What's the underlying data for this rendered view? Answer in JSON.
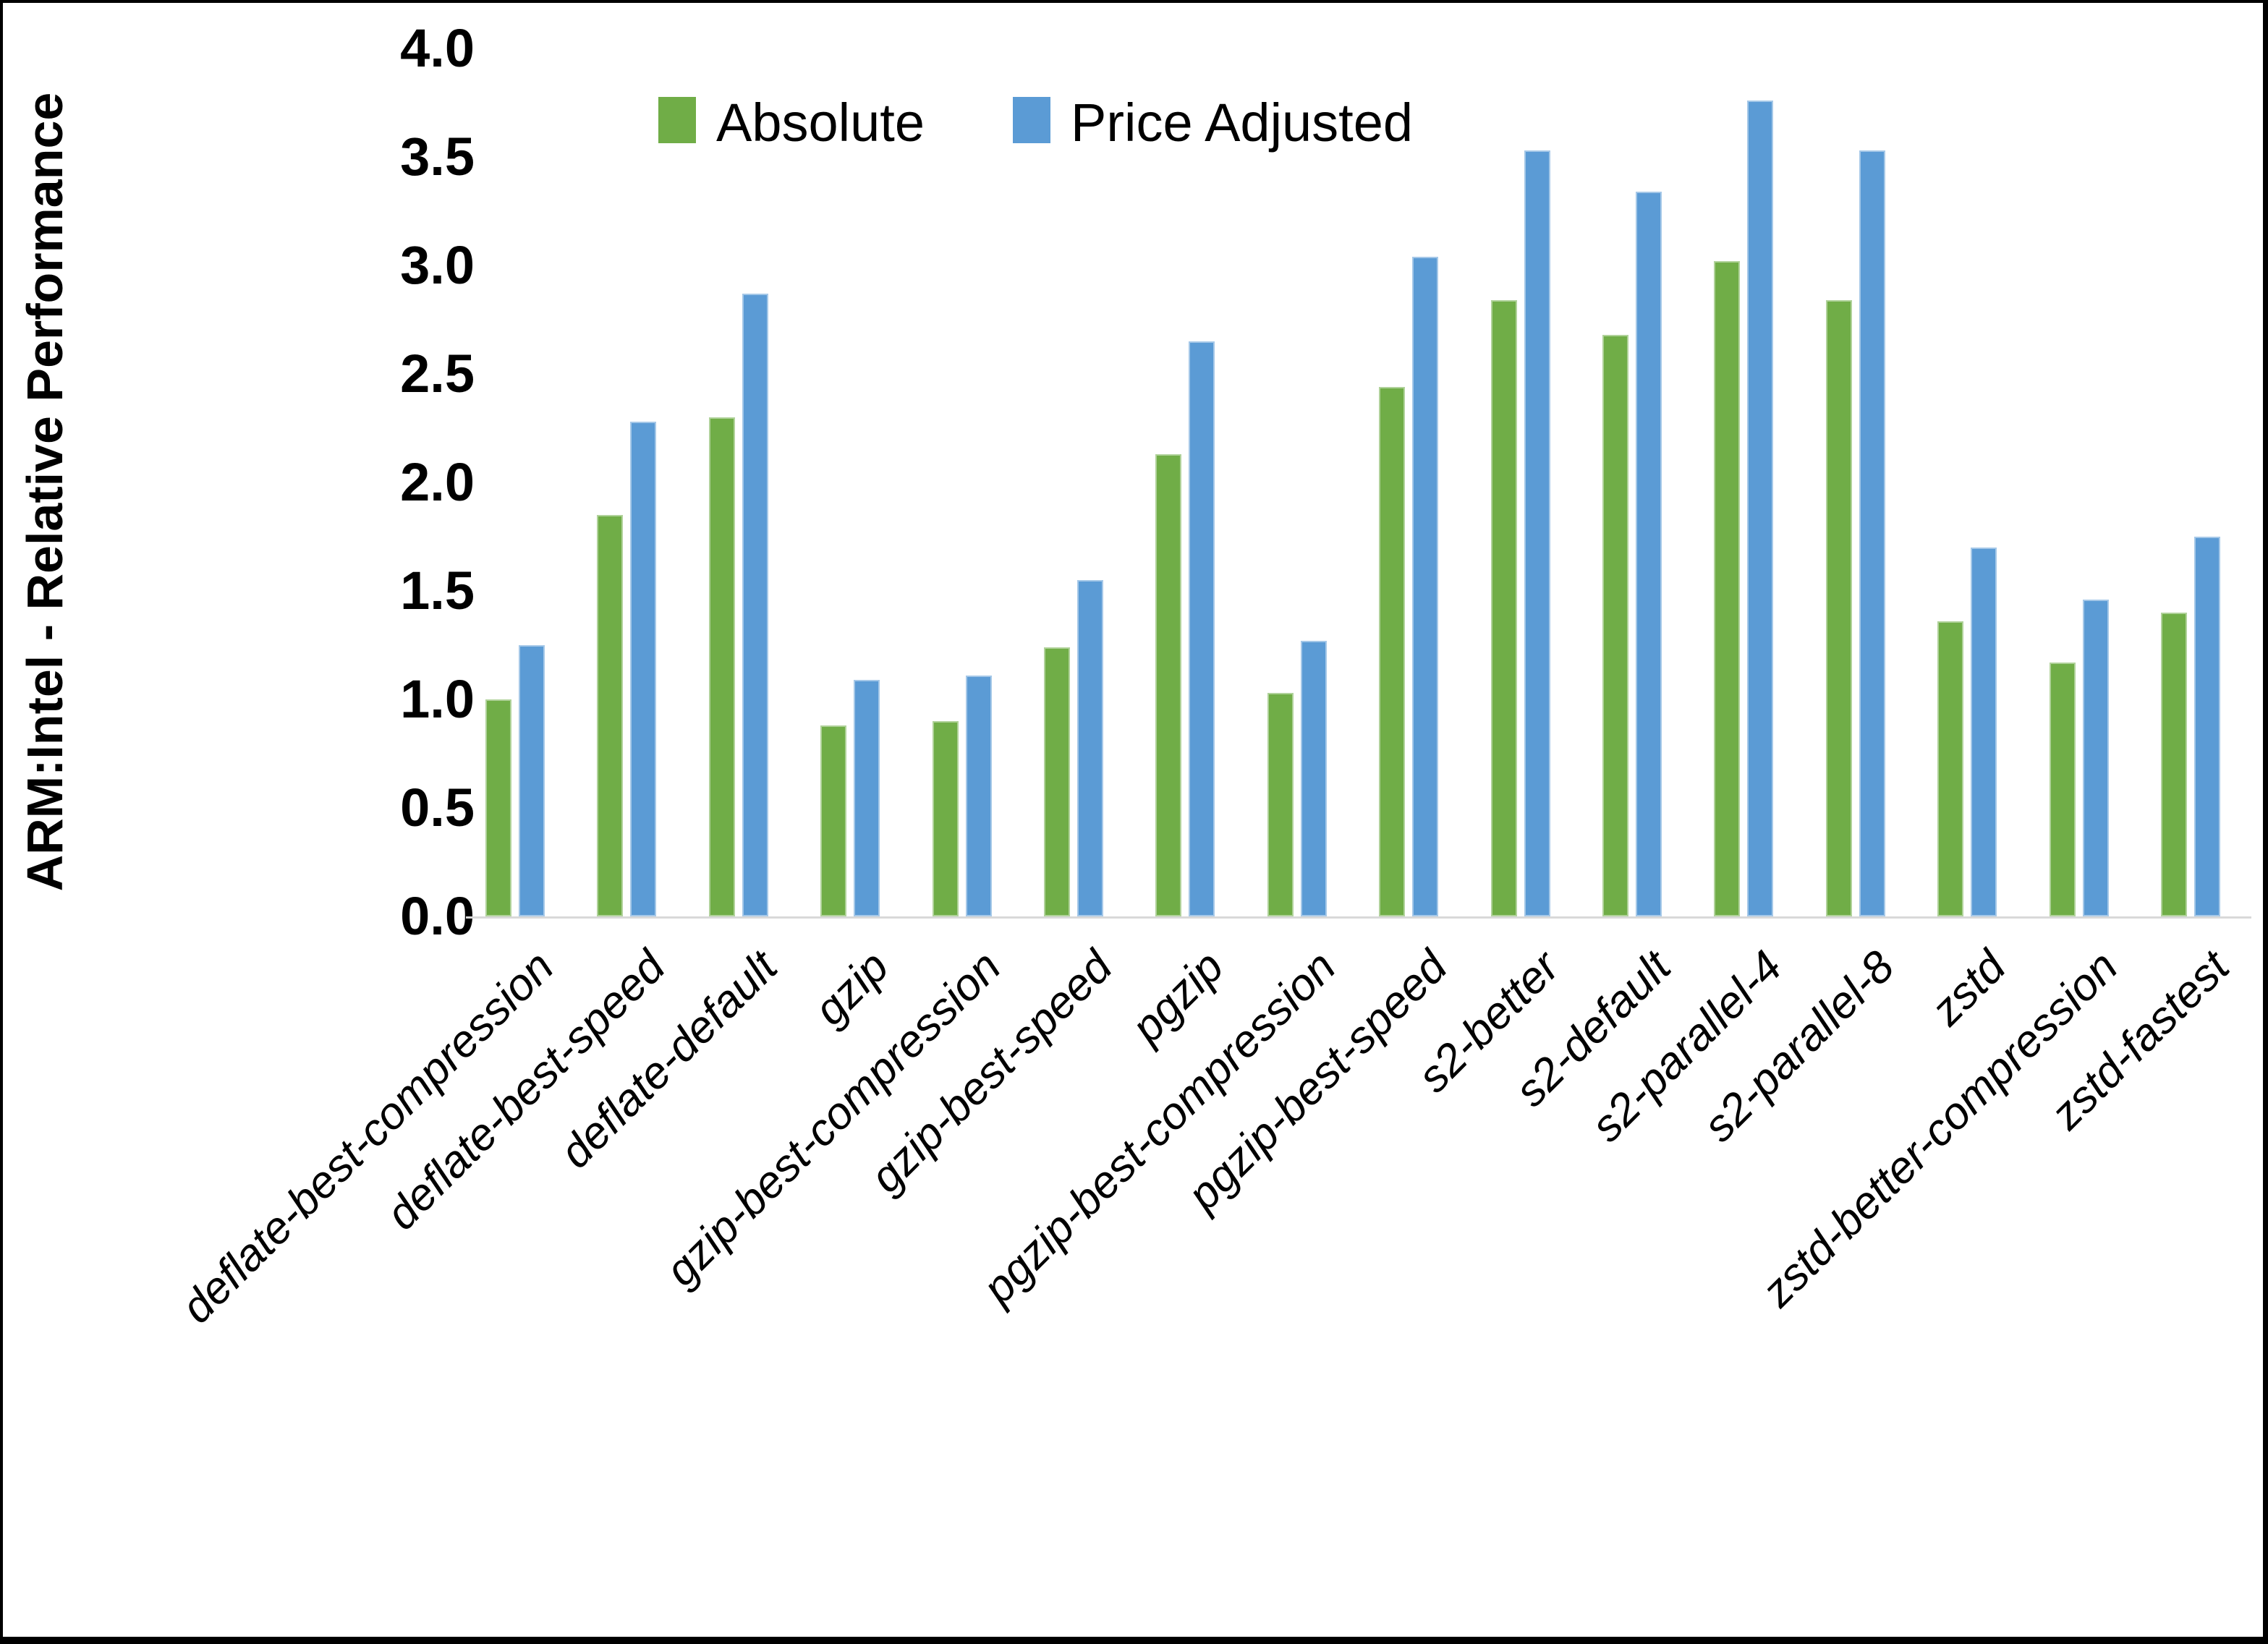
{
  "chart_data": {
    "type": "bar",
    "title": "",
    "ylabel": "ARM:Intel - Relative Performance",
    "xlabel": "",
    "ylim": [
      0.0,
      4.0
    ],
    "ytick_step": 0.5,
    "ytick_labels": [
      "0.0",
      "0.5",
      "1.0",
      "1.5",
      "2.0",
      "2.5",
      "3.0",
      "3.5",
      "4.0"
    ],
    "grid": false,
    "legend_position": "top-center",
    "axis_line_color": "#d9d9d9",
    "categories": [
      "deflate-best-compression",
      "deflate-best-speed",
      "deflate-default",
      "gzip",
      "gzip-best-compression",
      "gzip-best-speed",
      "pgzip",
      "pgzip-best-compression",
      "pgzip-best-speed",
      "s2-better",
      "s2-default",
      "s2-parallel-4",
      "s2-parallel-8",
      "zstd",
      "zstd-better-compression",
      "zstd-fastest"
    ],
    "series": [
      {
        "name": "Absolute",
        "color": "#70AD47",
        "values": [
          1.0,
          1.85,
          2.3,
          0.88,
          0.9,
          1.24,
          2.13,
          1.03,
          2.44,
          2.84,
          2.68,
          3.02,
          2.84,
          1.36,
          1.17,
          1.4
        ]
      },
      {
        "name": "Price Adjusted",
        "color": "#5B9BD5",
        "values": [
          1.25,
          2.28,
          2.87,
          1.09,
          1.11,
          1.55,
          2.65,
          1.27,
          3.04,
          3.53,
          3.34,
          3.76,
          3.53,
          1.7,
          1.46,
          1.75
        ]
      }
    ]
  }
}
